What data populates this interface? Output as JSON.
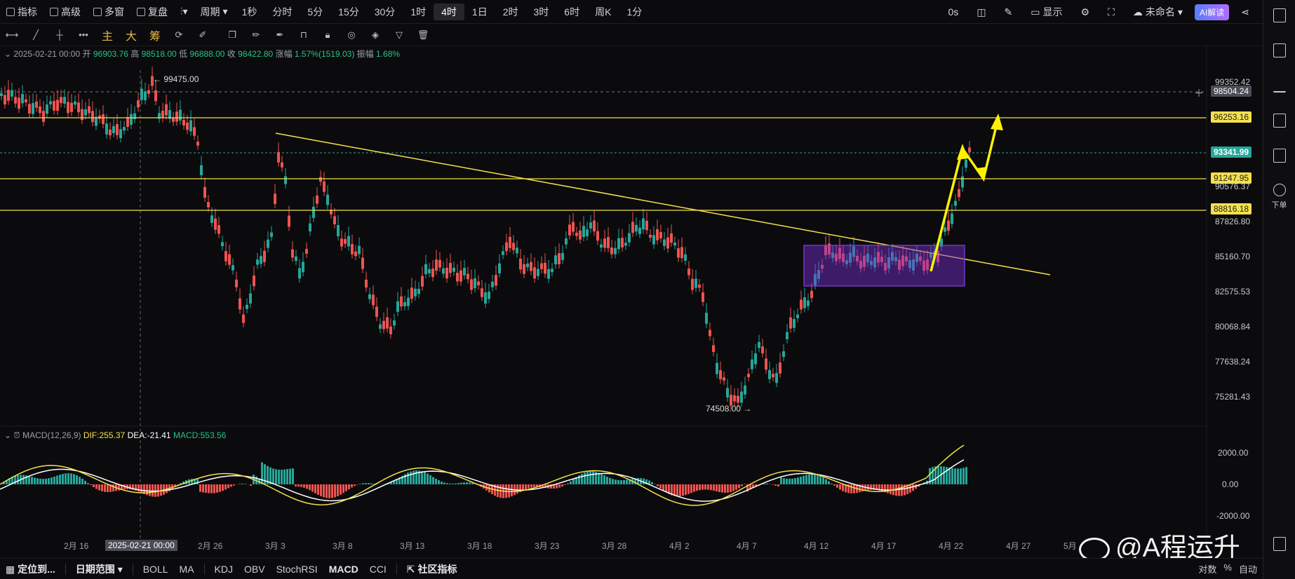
{
  "toolbar": {
    "items": [
      "指标",
      "高级",
      "多窗",
      "复盘"
    ],
    "period_label": "周期",
    "timeframes": [
      "1秒",
      "分时",
      "5分",
      "15分",
      "30分",
      "1时",
      "4时",
      "1日",
      "2时",
      "3时",
      "6时",
      "周K",
      "1分"
    ],
    "active_timeframe": "4时",
    "right": {
      "latency": "0s",
      "display": "显示",
      "workspace": "未命名",
      "ai": "AI解读"
    }
  },
  "drawbar": {
    "cn_tools": [
      "主",
      "大",
      "筹"
    ]
  },
  "info": {
    "date": "2025-02-21 00:00",
    "open_label": "开",
    "open": "96903.76",
    "high_label": "高",
    "high": "98518.00",
    "low_label": "低",
    "low": "96888.00",
    "close_label": "收",
    "close": "98422.80",
    "change_label": "涨幅",
    "change": "1.57%(1519.03)",
    "amp_label": "振幅",
    "amp": "1.68%"
  },
  "price_axis": [
    "99352.42",
    "90576.37",
    "87826.80",
    "85160.70",
    "82575.53",
    "80068.84",
    "77638.24",
    "75281.43"
  ],
  "price_tags": {
    "crosshair": "98504.24",
    "level1": "96253.16",
    "current": "93341.99",
    "level2": "91247.95",
    "level3": "88816.18"
  },
  "annotations": {
    "high": "← 99475.00",
    "low": "74508.00 →"
  },
  "macd": {
    "title": "MACD(12,26,9)",
    "dif": "DIF:255.37",
    "dea": "DEA:-21.41",
    "macd": "MACD:553.56",
    "axis": [
      "2000.00",
      "0.00",
      "-2000.00"
    ]
  },
  "date_axis": [
    "2月 16",
    "2025-02-21 00:00",
    "2月 26",
    "3月 3",
    "3月 8",
    "3月 13",
    "3月 18",
    "3月 23",
    "3月 28",
    "4月 2",
    "4月 7",
    "4月 12",
    "4月 17",
    "4月 22",
    "4月 27",
    "5月"
  ],
  "bottom": {
    "locate": "定位到...",
    "range": "日期范围",
    "indicators": [
      "BOLL",
      "MA",
      "KDJ",
      "OBV",
      "StochRSI",
      "MACD",
      "CCI"
    ],
    "community": "社区指标",
    "right": [
      "对数",
      "%",
      "自动"
    ]
  },
  "sidebar": {
    "order_label": "下单"
  },
  "watermark": "@A程运升",
  "colors": {
    "up": "#26a69a",
    "down": "#ef5350",
    "level_line": "#f4e04d",
    "box": "#7b2fd6",
    "current_tag": "#26a69a"
  }
}
